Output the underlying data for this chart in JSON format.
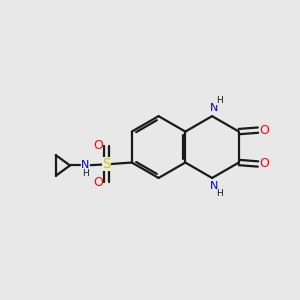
{
  "bg_color": "#e8e8e8",
  "bond_color": "#1a1a1a",
  "N_color": "#0000cc",
  "O_color": "#ff0000",
  "S_color": "#cccc00",
  "figsize": [
    3.0,
    3.0
  ],
  "dpi": 100,
  "xlim": [
    0,
    10
  ],
  "ylim": [
    0,
    10
  ],
  "bond_lw": 1.6,
  "font_size": 8
}
